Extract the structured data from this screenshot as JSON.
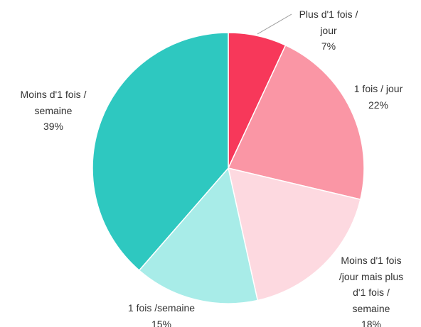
{
  "chart_data": {
    "type": "pie",
    "categories": [
      "Plus d'1 fois / jour",
      "1 fois / jour",
      "Moins d'1 fois /jour mais plus d'1 fois / semaine",
      "1 fois /semaine",
      "Moins d'1 fois / semaine"
    ],
    "values": [
      7,
      22,
      18,
      15,
      39
    ],
    "value_labels": [
      "7%",
      "22%",
      "18%",
      "15%",
      "39%"
    ],
    "colors": [
      "#f7385a",
      "#fa96a5",
      "#fdd9e0",
      "#a8ece8",
      "#2ec8c0"
    ]
  }
}
